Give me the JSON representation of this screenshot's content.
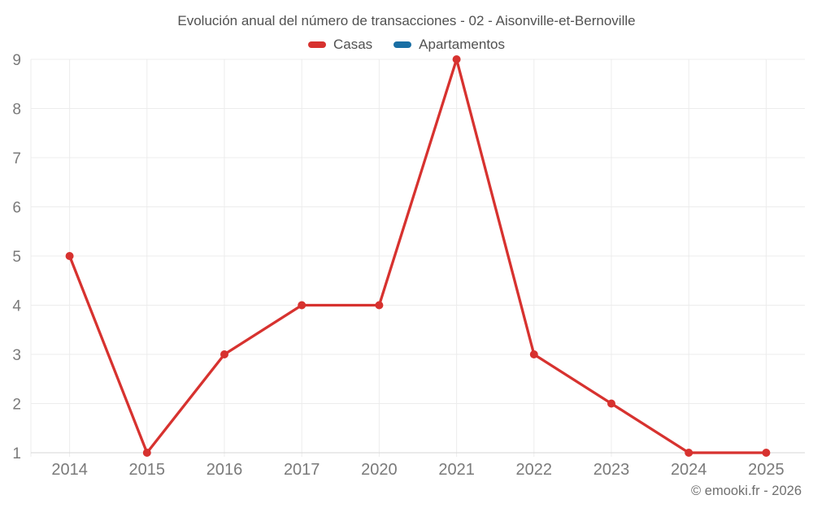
{
  "chart_data": {
    "type": "line",
    "title": "Evolución anual del número de transacciones - 02 - Aisonville-et-Bernoville",
    "categories": [
      "2014",
      "2015",
      "2016",
      "2017",
      "2020",
      "2021",
      "2022",
      "2023",
      "2024",
      "2025"
    ],
    "series": [
      {
        "name": "Casas",
        "color": "#d7322f",
        "values": [
          5,
          1,
          3,
          4,
          4,
          9,
          3,
          2,
          1,
          1
        ]
      },
      {
        "name": "Apartamentos",
        "color": "#1a6fa4",
        "values": []
      }
    ],
    "xlabel": "",
    "ylabel": "",
    "ylim": [
      1,
      9
    ],
    "yticks": [
      1,
      2,
      3,
      4,
      5,
      6,
      7,
      8,
      9
    ],
    "grid": true,
    "legend_position": "top",
    "colors": {
      "grid_line": "#ececec",
      "axis_line": "#d6d6d6",
      "tick_label": "#7a7a7a",
      "title_text": "#515151"
    }
  },
  "footer": {
    "copyright": "© emooki.fr - 2026"
  }
}
